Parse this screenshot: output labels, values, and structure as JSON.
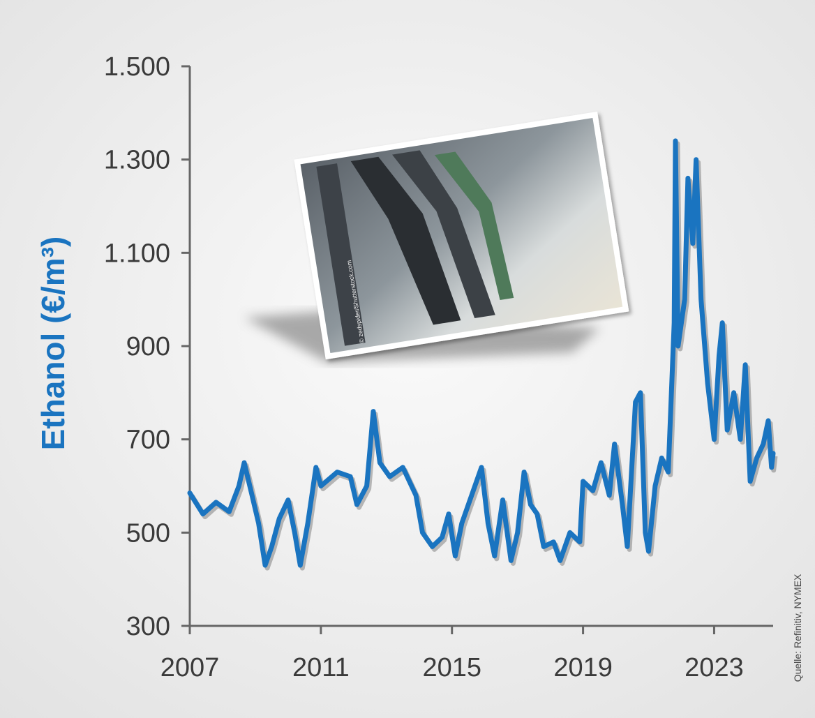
{
  "chart_data": {
    "type": "line",
    "y_label": "Ethanol (€/m³)",
    "source": "Quelle: Refinitiv, NYMEX",
    "image_credit": "© zedspider/Shutterstock.com",
    "xlim": [
      2007,
      2024.8
    ],
    "xticks": [
      2007,
      2011,
      2015,
      2019,
      2023
    ],
    "ylim": [
      300,
      1500
    ],
    "yticks": [
      300,
      500,
      700,
      900,
      {
        "value": 1100,
        "label": "1.100"
      },
      {
        "value": 1300,
        "label": "1.300"
      },
      {
        "value": 1500,
        "label": "1.500"
      }
    ],
    "series": [
      {
        "name": "Ethanol",
        "color": "#1a74c0",
        "x": [
          2007.0,
          2007.4,
          2007.8,
          2008.2,
          2008.5,
          2008.66,
          2008.9,
          2009.1,
          2009.3,
          2009.5,
          2009.73,
          2010.0,
          2010.2,
          2010.37,
          2010.6,
          2010.85,
          2011.0,
          2011.5,
          2011.9,
          2012.1,
          2012.4,
          2012.6,
          2012.8,
          2013.1,
          2013.5,
          2013.9,
          2014.1,
          2014.4,
          2014.7,
          2014.9,
          2015.1,
          2015.3,
          2015.6,
          2015.9,
          2016.1,
          2016.3,
          2016.55,
          2016.8,
          2017.0,
          2017.2,
          2017.4,
          2017.6,
          2017.8,
          2018.1,
          2018.3,
          2018.6,
          2018.9,
          2019.0,
          2019.3,
          2019.55,
          2019.8,
          2019.96,
          2020.2,
          2020.35,
          2020.6,
          2020.75,
          2020.9,
          2021.0,
          2021.2,
          2021.4,
          2021.6,
          2021.78,
          2021.82,
          2021.9,
          2022.1,
          2022.2,
          2022.35,
          2022.45,
          2022.6,
          2022.8,
          2023.0,
          2023.15,
          2023.25,
          2023.4,
          2023.6,
          2023.8,
          2023.95,
          2024.1,
          2024.3,
          2024.5,
          2024.65,
          2024.75,
          2024.8
        ],
        "values": [
          585,
          540,
          565,
          545,
          600,
          650,
          580,
          520,
          430,
          470,
          530,
          570,
          500,
          430,
          520,
          640,
          600,
          630,
          620,
          560,
          600,
          760,
          650,
          620,
          640,
          580,
          500,
          470,
          490,
          540,
          450,
          520,
          580,
          640,
          520,
          450,
          570,
          440,
          500,
          630,
          560,
          540,
          470,
          480,
          440,
          500,
          480,
          610,
          590,
          650,
          580,
          690,
          560,
          470,
          780,
          800,
          500,
          460,
          600,
          660,
          630,
          950,
          1340,
          900,
          1000,
          1260,
          1120,
          1300,
          1000,
          820,
          700,
          880,
          950,
          720,
          800,
          700,
          860,
          610,
          660,
          690,
          740,
          640,
          670
        ]
      }
    ]
  }
}
